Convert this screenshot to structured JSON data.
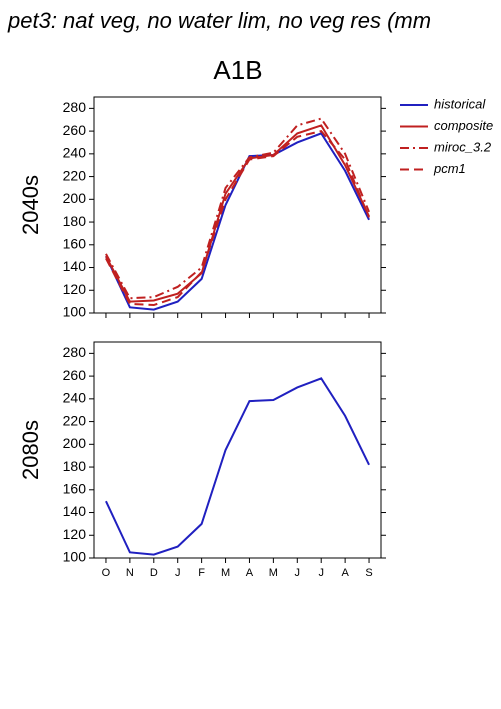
{
  "chart_data": [
    {
      "type": "line",
      "title": "pet3: nat veg, no water lim, no veg res (mm",
      "subtitle": "A1B",
      "ylabel": "2040s",
      "categories": [
        null,
        null,
        null,
        null,
        null,
        null,
        null,
        null,
        null,
        null,
        null,
        null
      ],
      "series": [
        {
          "name": "historical",
          "color": "#2020c0",
          "linestyle": "solid",
          "values": [
            150,
            105,
            103,
            110,
            130,
            195,
            238,
            239,
            250,
            258,
            225,
            182
          ]
        },
        {
          "name": "composite",
          "color": "#c02020",
          "linestyle": "solid",
          "values": [
            150,
            110,
            111,
            117,
            135,
            205,
            236,
            239,
            258,
            265,
            230,
            185
          ]
        },
        {
          "name": "miroc_3.2",
          "color": "#c02020",
          "linestyle": "dashdot",
          "values": [
            152,
            113,
            114,
            123,
            140,
            210,
            237,
            241,
            265,
            271,
            240,
            189
          ]
        },
        {
          "name": "pcm1",
          "color": "#c02020",
          "linestyle": "dashed",
          "values": [
            148,
            108,
            107,
            114,
            136,
            200,
            235,
            238,
            255,
            260,
            235,
            184
          ]
        }
      ],
      "ylim": [
        100,
        290
      ],
      "yticks": [
        100,
        120,
        140,
        160,
        180,
        200,
        220,
        240,
        260,
        280
      ]
    },
    {
      "type": "line",
      "ylabel": "2080s",
      "categories": [
        "O",
        "N",
        "D",
        "J",
        "F",
        "M",
        "A",
        "M",
        "J",
        "J",
        "A",
        "S"
      ],
      "series": [
        {
          "color": "#2020c0",
          "linestyle": "solid",
          "values": [
            150,
            105,
            103,
            110,
            130,
            195,
            238,
            239,
            250,
            258,
            225,
            182
          ]
        }
      ],
      "ylim": [
        100,
        290
      ],
      "yticks": [
        100,
        120,
        140,
        160,
        180,
        200,
        220,
        240,
        260,
        280
      ]
    }
  ]
}
